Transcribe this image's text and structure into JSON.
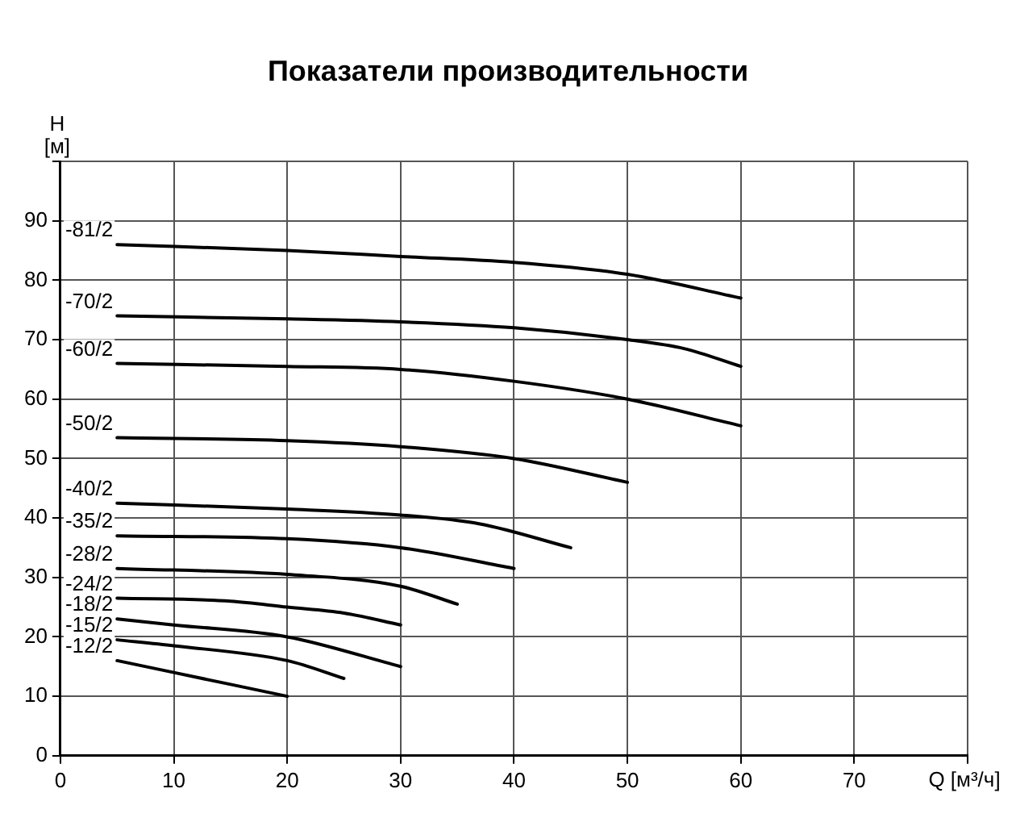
{
  "chart_data": {
    "type": "line",
    "title": "Показатели производительности",
    "xlabel": "Q [м³/ч]",
    "ylabel": "H [м]",
    "xlim": [
      0,
      80
    ],
    "xticks": [
      0,
      10,
      20,
      30,
      40,
      50,
      60,
      70,
      {
        "value": 80,
        "label": null
      }
    ],
    "ylim": [
      0,
      100
    ],
    "yticks": [
      0,
      10,
      20,
      30,
      40,
      50,
      60,
      70,
      80,
      90,
      {
        "value": 100,
        "label": null
      }
    ],
    "grid": true,
    "legend": false,
    "marker": "none",
    "line_style": "solid",
    "series": [
      {
        "name": "-81/2",
        "color": "#000000",
        "x": [
          5,
          20,
          30,
          40,
          50,
          60
        ],
        "values": [
          86,
          85,
          84,
          83,
          81,
          77
        ]
      },
      {
        "name": "-70/2",
        "color": "#000000",
        "x": [
          5,
          20,
          30,
          40,
          50,
          55,
          60
        ],
        "values": [
          74,
          73.5,
          73,
          72,
          70,
          68.5,
          65.5
        ]
      },
      {
        "name": "-60/2",
        "color": "#000000",
        "x": [
          5,
          20,
          30,
          40,
          50,
          60
        ],
        "values": [
          66,
          65.5,
          65,
          63,
          60,
          55.5
        ]
      },
      {
        "name": "-50/2",
        "color": "#000000",
        "x": [
          5,
          20,
          30,
          40,
          50
        ],
        "values": [
          53.5,
          53,
          52,
          50,
          46
        ]
      },
      {
        "name": "-40/2",
        "color": "#000000",
        "x": [
          5,
          20,
          30,
          37,
          45
        ],
        "values": [
          42.5,
          41.5,
          40.5,
          39,
          35
        ]
      },
      {
        "name": "-35/2",
        "color": "#000000",
        "x": [
          5,
          20,
          30,
          40
        ],
        "values": [
          37,
          36.5,
          35,
          31.5
        ]
      },
      {
        "name": "-28/2",
        "color": "#000000",
        "x": [
          5,
          20,
          30,
          35
        ],
        "values": [
          31.5,
          30.5,
          28.5,
          25.5
        ]
      },
      {
        "name": "-24/2",
        "color": "#000000",
        "x": [
          5,
          15,
          20,
          25,
          30
        ],
        "values": [
          26.5,
          26,
          25,
          24,
          22
        ]
      },
      {
        "name": "-18/2",
        "color": "#000000",
        "x": [
          5,
          10,
          20,
          30
        ],
        "values": [
          23,
          22,
          20,
          15
        ]
      },
      {
        "name": "-15/2",
        "color": "#000000",
        "x": [
          5,
          10,
          20,
          25
        ],
        "values": [
          19.5,
          18.5,
          16,
          13
        ]
      },
      {
        "name": "-12/2",
        "color": "#000000",
        "x": [
          5,
          10,
          20
        ],
        "values": [
          16,
          14,
          10
        ]
      }
    ]
  }
}
